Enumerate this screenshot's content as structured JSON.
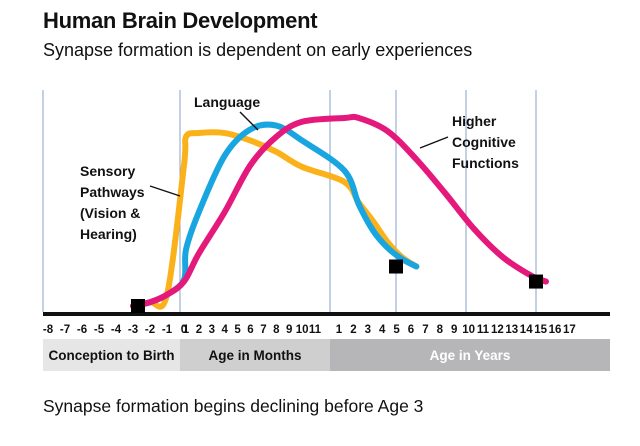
{
  "title": "Human Brain Development",
  "subtitle": "Synapse formation is dependent on early experiences",
  "footer": "Synapse formation begins declining before Age 3",
  "chart_data": {
    "type": "line",
    "x_ticks": [
      "-8",
      "-7",
      "-6",
      "-5",
      "-4",
      "-3",
      "-2",
      "-1",
      "0",
      "1",
      "2",
      "3",
      "4",
      "5",
      "6",
      "7",
      "8",
      "9",
      "10",
      "11",
      "1",
      "2",
      "3",
      "4",
      "5",
      "6",
      "7",
      "8",
      "9",
      "10",
      "11",
      "12",
      "13",
      "14",
      "15",
      "16",
      "17"
    ],
    "segments": [
      {
        "label": "Conception to Birth",
        "color": "#e6e6e6"
      },
      {
        "label": "Age in Months",
        "color": "#cfcfd0"
      },
      {
        "label": "Age in Years",
        "color": "#b6b6b8"
      }
    ],
    "series": [
      {
        "name": "Sensory Pathways (Vision & Hearing)",
        "color": "#fbb21a",
        "x": [
          -3,
          -2,
          -1,
          0,
          1,
          2,
          4,
          6,
          8,
          10,
          1,
          2,
          3,
          4,
          5,
          6
        ],
        "y": [
          0,
          2,
          6,
          75,
          90,
          92,
          92,
          88,
          82,
          74,
          66,
          55,
          45,
          34,
          26,
          21
        ]
      },
      {
        "name": "Language",
        "color": "#19a6e0",
        "x": [
          -3,
          -2,
          -1,
          0,
          1,
          2,
          4,
          6,
          8,
          10,
          1,
          2,
          3,
          4,
          5,
          6
        ],
        "y": [
          0,
          2,
          6,
          14,
          30,
          50,
          80,
          94,
          96,
          88,
          72,
          54,
          40,
          31,
          25,
          21
        ]
      },
      {
        "name": "Higher Cognitive Functions",
        "color": "#e5187c",
        "x": [
          -3,
          -2,
          -1,
          0,
          2,
          4,
          6,
          8,
          10,
          1,
          2,
          4,
          6,
          8,
          10,
          12,
          14,
          15
        ],
        "y": [
          0,
          2,
          6,
          13,
          28,
          50,
          75,
          90,
          98,
          100,
          100,
          93,
          78,
          60,
          41,
          26,
          16,
          13
        ]
      }
    ],
    "markers": [
      {
        "x": -3,
        "y": 0
      },
      {
        "x": 6,
        "y": 21
      },
      {
        "x": 15,
        "y": 13
      }
    ],
    "labels": {
      "sensory": [
        "Sensory",
        "Pathways",
        "(Vision &",
        "Hearing)"
      ],
      "language": [
        "Language"
      ],
      "higher": [
        "Higher",
        "Cognitive",
        "Functions"
      ]
    }
  }
}
